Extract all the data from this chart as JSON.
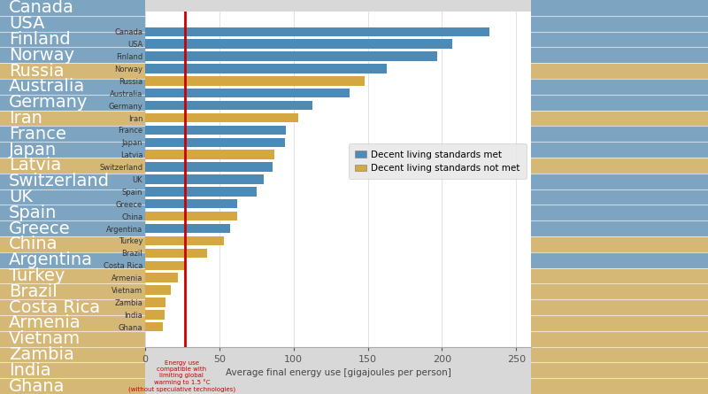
{
  "countries": [
    "Canada",
    "USA",
    "Finland",
    "Norway",
    "Russia",
    "Australia",
    "Germany",
    "Iran",
    "France",
    "Japan",
    "Latvia",
    "Switzerland",
    "UK",
    "Spain",
    "Greece",
    "China",
    "Argentina",
    "Turkey",
    "Brazil",
    "Costa Rica",
    "Armenia",
    "Vietnam",
    "Zambia",
    "India",
    "Ghana"
  ],
  "values": [
    232,
    207,
    197,
    163,
    148,
    138,
    113,
    103,
    95,
    94,
    87,
    86,
    80,
    75,
    62,
    62,
    57,
    53,
    42,
    27,
    22,
    17,
    14,
    13,
    12
  ],
  "colors": [
    "#4d8ab5",
    "#4d8ab5",
    "#4d8ab5",
    "#4d8ab5",
    "#d4a742",
    "#4d8ab5",
    "#4d8ab5",
    "#d4a742",
    "#4d8ab5",
    "#4d8ab5",
    "#d4a742",
    "#4d8ab5",
    "#4d8ab5",
    "#4d8ab5",
    "#4d8ab5",
    "#d4a742",
    "#4d8ab5",
    "#d4a742",
    "#d4a742",
    "#d4a742",
    "#d4a742",
    "#d4a742",
    "#d4a742",
    "#d4a742",
    "#d4a742"
  ],
  "redline_x": 27,
  "xlabel": "Average final energy use [gigajoules per person]",
  "xlim": [
    0,
    260
  ],
  "xticks": [
    0,
    50,
    100,
    150,
    200,
    250
  ],
  "legend_blue_label": "Decent living standards met",
  "legend_yellow_label": "Decent living standards not met",
  "redline_annotation": "Energy use\ncompatible with\nlimiting global\nwarming to 1.5 °C\n(without speculative technologies)",
  "blue_color": "#4d8ab5",
  "yellow_color": "#d4a742",
  "red_color": "#cc0000",
  "bg_color": "#d8d8d8",
  "plot_bg_color": "#ffffff",
  "sidebar_bg_color": "#b8b8b8"
}
